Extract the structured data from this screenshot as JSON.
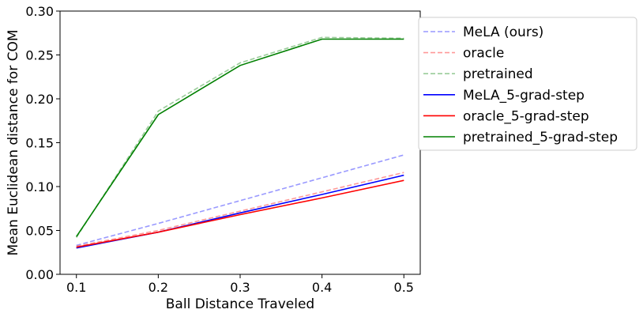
{
  "chart_data": {
    "type": "line",
    "title": "",
    "xlabel": "Ball Distance Traveled",
    "ylabel": "Mean Euclidean distance for COM",
    "x": [
      0.1,
      0.2,
      0.3,
      0.4,
      0.5
    ],
    "x_tick_labels": [
      "0.1",
      "0.2",
      "0.3",
      "0.4",
      "0.5"
    ],
    "y_tick_labels": [
      "0.00",
      "0.05",
      "0.10",
      "0.15",
      "0.20",
      "0.25",
      "0.30"
    ],
    "xlim": [
      0.08,
      0.52
    ],
    "ylim": [
      0.0,
      0.3
    ],
    "grid": false,
    "legend_position": "upper-right-outside",
    "series": [
      {
        "name": "MeLA (ours)",
        "color": "#0000ff",
        "style": "dashed",
        "alpha": 0.4,
        "values": [
          0.033,
          0.058,
          0.084,
          0.11,
          0.136
        ]
      },
      {
        "name": "oracle",
        "color": "#ff0000",
        "style": "dashed",
        "alpha": 0.4,
        "values": [
          0.032,
          0.05,
          0.072,
          0.094,
          0.116
        ]
      },
      {
        "name": "pretrained",
        "color": "#008000",
        "style": "dashed",
        "alpha": 0.4,
        "values": [
          0.042,
          0.186,
          0.241,
          0.27,
          0.269
        ]
      },
      {
        "name": "MeLA_5-grad-step",
        "color": "#0000ff",
        "style": "solid",
        "alpha": 1,
        "values": [
          0.03,
          0.048,
          0.07,
          0.091,
          0.113
        ]
      },
      {
        "name": "oracle_5-grad-step",
        "color": "#ff0000",
        "style": "solid",
        "alpha": 1,
        "values": [
          0.031,
          0.048,
          0.068,
          0.087,
          0.107
        ]
      },
      {
        "name": "pretrained_5-grad-step",
        "color": "#008000",
        "style": "solid",
        "alpha": 1,
        "values": [
          0.043,
          0.182,
          0.238,
          0.268,
          0.268
        ]
      }
    ]
  }
}
